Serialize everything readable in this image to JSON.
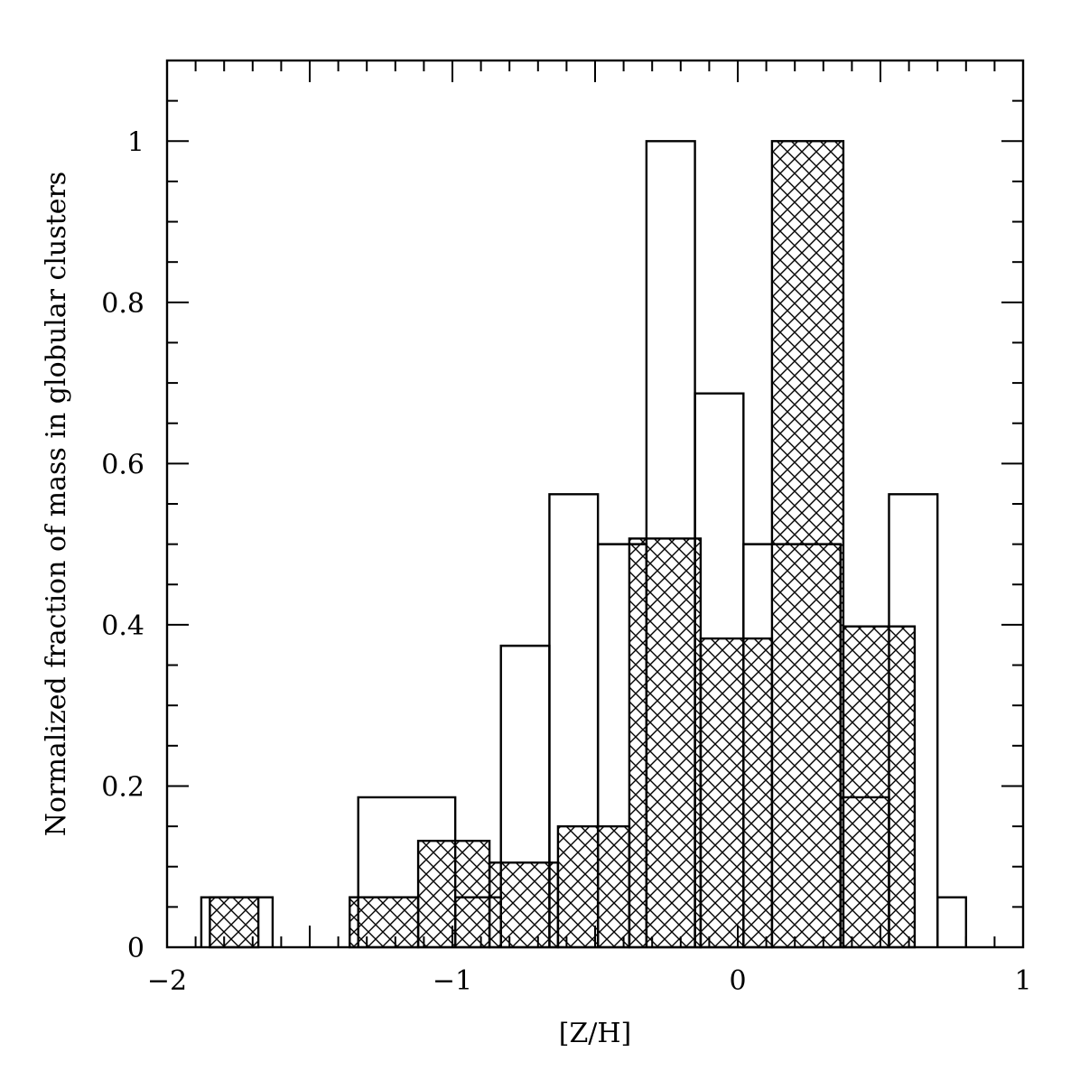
{
  "chart_data": {
    "type": "histogram",
    "xlabel": "[Z/H]",
    "ylabel": "Normalized fraction of mass in globular clusters",
    "xlim": [
      -2,
      1
    ],
    "ylim": [
      0,
      1.1
    ],
    "x_ticks": [
      -2,
      -1,
      0,
      1
    ],
    "x_tick_labels": [
      "−2",
      "−1",
      "0",
      "1"
    ],
    "y_ticks": [
      0,
      0.2,
      0.4,
      0.6,
      0.8,
      1
    ],
    "y_tick_labels": [
      "0",
      "0.2",
      "0.4",
      "0.6",
      "0.8",
      "1"
    ],
    "grid": false,
    "legend": "none",
    "series": [
      {
        "style": "outline",
        "bins": [
          {
            "x0": -1.88,
            "x1": -1.63,
            "value": 0.062
          },
          {
            "x0": -1.33,
            "x1": -0.99,
            "value": 0.186
          },
          {
            "x0": -0.99,
            "x1": -0.83,
            "value": 0.062
          },
          {
            "x0": -0.83,
            "x1": -0.66,
            "value": 0.374
          },
          {
            "x0": -0.66,
            "x1": -0.49,
            "value": 0.562
          },
          {
            "x0": -0.49,
            "x1": -0.32,
            "value": 0.5
          },
          {
            "x0": -0.32,
            "x1": -0.15,
            "value": 1.0
          },
          {
            "x0": -0.15,
            "x1": 0.02,
            "value": 0.687
          },
          {
            "x0": 0.02,
            "x1": 0.36,
            "value": 0.5
          },
          {
            "x0": 0.36,
            "x1": 0.53,
            "value": 0.186
          },
          {
            "x0": 0.53,
            "x1": 0.7,
            "value": 0.562
          },
          {
            "x0": 0.7,
            "x1": 0.8,
            "value": 0.062
          }
        ]
      },
      {
        "style": "cross-hatched",
        "bins": [
          {
            "x0": -1.85,
            "x1": -1.68,
            "value": 0.062
          },
          {
            "x0": -1.36,
            "x1": -1.12,
            "value": 0.062
          },
          {
            "x0": -1.12,
            "x1": -0.87,
            "value": 0.132
          },
          {
            "x0": -0.87,
            "x1": -0.63,
            "value": 0.105
          },
          {
            "x0": -0.63,
            "x1": -0.38,
            "value": 0.15
          },
          {
            "x0": -0.38,
            "x1": -0.13,
            "value": 0.507
          },
          {
            "x0": -0.13,
            "x1": 0.12,
            "value": 0.383
          },
          {
            "x0": 0.12,
            "x1": 0.37,
            "value": 1.0
          },
          {
            "x0": 0.37,
            "x1": 0.62,
            "value": 0.398
          }
        ]
      }
    ]
  }
}
